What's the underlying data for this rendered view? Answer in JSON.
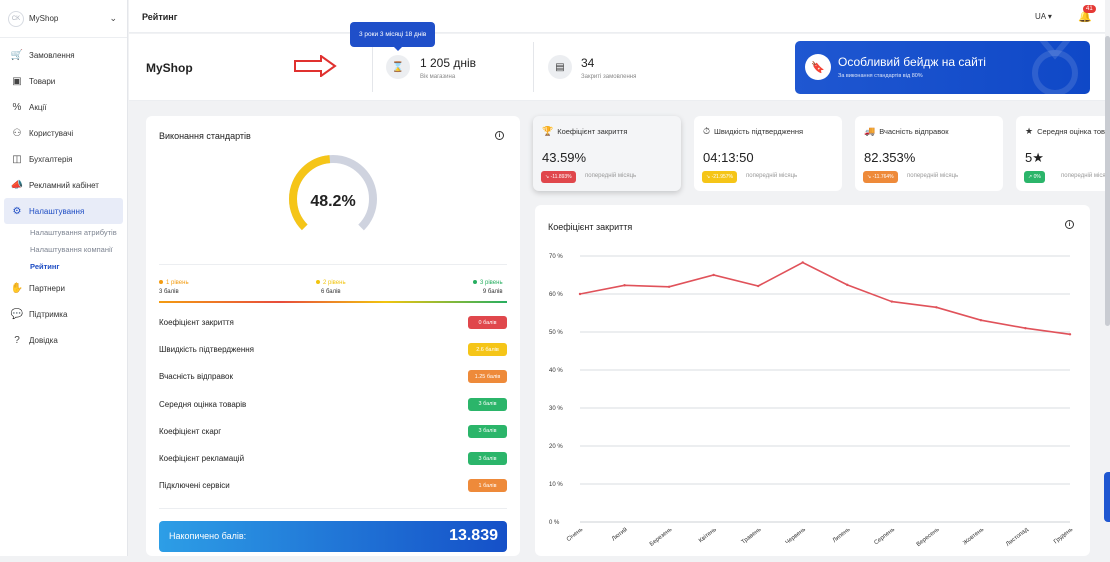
{
  "sidebar": {
    "avatar": "CK",
    "shop_name": "MyShop",
    "items": [
      {
        "label": "Замовлення",
        "icon": "cart-icon",
        "glyph": "🛒"
      },
      {
        "label": "Товари",
        "icon": "box-icon",
        "glyph": "▣"
      },
      {
        "label": "Акції",
        "icon": "percent-icon",
        "glyph": "%"
      },
      {
        "label": "Користувачі",
        "icon": "users-icon",
        "glyph": "⚇"
      },
      {
        "label": "Бухгалтерія",
        "icon": "wallet-icon",
        "glyph": "◫"
      },
      {
        "label": "Рекламний кабінет",
        "icon": "megaphone-icon",
        "glyph": "📣"
      },
      {
        "label": "Налаштування",
        "icon": "gear-icon",
        "glyph": "⚙"
      }
    ],
    "subitems": [
      "Налаштування атрибутів",
      "Налаштування компанії",
      "Рейтинг"
    ],
    "items_bottom": [
      {
        "label": "Партнери",
        "icon": "handshake-icon",
        "glyph": "✋"
      },
      {
        "label": "Підтримка",
        "icon": "chat-icon",
        "glyph": "💬"
      },
      {
        "label": "Довідка",
        "icon": "help-icon",
        "glyph": "?"
      }
    ]
  },
  "header": {
    "title": "Рейтинг",
    "lang": "UA",
    "notifications": "41"
  },
  "info": {
    "shop": "MyShop",
    "tooltip": "3 роки 3 місяці 18 днів",
    "days_value": "1 205 днів",
    "days_label": "Вік магазина",
    "orders_value": "34",
    "orders_label": "Закриті замовлення"
  },
  "banner": {
    "title": "Особливий бейдж на сайті",
    "subtitle": "За виконання стандартів від 80%"
  },
  "standards": {
    "title": "Виконання стандартів",
    "percent_label": "48.2%",
    "percent": 48.2,
    "levels": [
      {
        "name": "1 рівень",
        "points": "3 балів",
        "color": "#f39c12"
      },
      {
        "name": "2 рівень",
        "points": "6 балів",
        "color": "#f1c40f"
      },
      {
        "name": "3 рівень",
        "points": "9 балів",
        "color": "#27ae60"
      }
    ],
    "criteria": [
      {
        "name": "Коефіцієнт закриття",
        "badge": "0 балів",
        "color": "#e0474c"
      },
      {
        "name": "Швидкість підтвердження",
        "badge": "2.6 балів",
        "color": "#f5c518"
      },
      {
        "name": "Вчасність відправок",
        "badge": "1.25 балів",
        "color": "#ee8a3a"
      },
      {
        "name": "Середня оцінка товарів",
        "badge": "3 балів",
        "color": "#2bb56a"
      },
      {
        "name": "Коефіцієнт скарг",
        "badge": "3 балів",
        "color": "#2bb56a"
      },
      {
        "name": "Коефіцієнт рекламацій",
        "badge": "3 балів",
        "color": "#2bb56a"
      },
      {
        "name": "Підключені сервіси",
        "badge": "1 балів",
        "color": "#ee8a3a"
      }
    ],
    "total_label": "Накопичено балів:",
    "total_value": "13.839"
  },
  "kpis": [
    {
      "title": "Коефіцієнт закриття",
      "icon": "trophy-icon",
      "glyph": "🏆",
      "value": "43.59%",
      "delta": "↘ -11.893%",
      "delta_color": "#e0474c",
      "prev": "попередній місяць"
    },
    {
      "title": "Швидкість підтвердження",
      "icon": "stopwatch-icon",
      "glyph": "⏱",
      "value": "04:13:50",
      "delta": "↘ -21.957%",
      "delta_color": "#f5c518",
      "prev": "попередній місяць"
    },
    {
      "title": "Вчасність відправок",
      "icon": "truck-icon",
      "glyph": "🚚",
      "value": "82.353%",
      "delta": "↘ -11.764%",
      "delta_color": "#ee8a3a",
      "prev": "попередній місяць"
    },
    {
      "title": "Середня оцінка товарів",
      "icon": "star-icon",
      "glyph": "★",
      "value": "5★",
      "delta": "↗ 0%",
      "delta_color": "#2bb56a",
      "prev": "попередній місяць"
    }
  ],
  "chart_data": {
    "type": "line",
    "title": "Коефіцієнт закриття",
    "categories": [
      "Січень",
      "Лютий",
      "Березень",
      "Квітень",
      "Травень",
      "Червень",
      "Липень",
      "Серпень",
      "Вересень",
      "Жовтень",
      "Листопад",
      "Грудень"
    ],
    "series": [
      {
        "values": [
          60,
          62.3,
          61.9,
          65,
          62.1,
          68.3,
          62.4,
          58,
          56.5,
          53.1,
          51,
          49.4
        ]
      }
    ],
    "yticks": [
      "0 %",
      "10 %",
      "20 %",
      "30 %",
      "40 %",
      "50 %",
      "60 %",
      "70 %"
    ],
    "ylim": [
      0,
      70
    ],
    "color": "#e0525a",
    "grid": true
  }
}
